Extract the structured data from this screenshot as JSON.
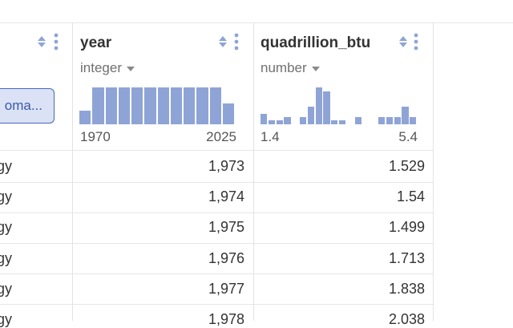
{
  "left_column": {
    "button_label": "oma...",
    "row_suffix": "gy"
  },
  "columns": [
    {
      "name": "year",
      "type": "integer",
      "hist_min": "1970",
      "hist_max": "2025",
      "histogram": [
        0.35,
        0.95,
        0.95,
        0.95,
        0.95,
        0.95,
        0.95,
        0.95,
        0.95,
        0.95,
        0.95,
        0.55
      ]
    },
    {
      "name": "quadrillion_btu",
      "type": "number",
      "hist_min": "1.4",
      "hist_max": "5.4",
      "histogram": [
        0.28,
        0.1,
        0.1,
        0.18,
        0,
        0.18,
        0.45,
        0.95,
        0.85,
        0.1,
        0.1,
        0,
        0.18,
        0,
        0,
        0.18,
        0.18,
        0.18,
        0.45,
        0.18
      ]
    }
  ],
  "rows": [
    {
      "year": "1,973",
      "quadrillion_btu": "1.529"
    },
    {
      "year": "1,974",
      "quadrillion_btu": "1.54"
    },
    {
      "year": "1,975",
      "quadrillion_btu": "1.499"
    },
    {
      "year": "1,976",
      "quadrillion_btu": "1.713"
    },
    {
      "year": "1,977",
      "quadrillion_btu": "1.838"
    },
    {
      "year": "1,978",
      "quadrillion_btu": "2.038"
    }
  ],
  "colors": {
    "accent": "#4a67b5",
    "histogram_bar": "#8fa4d6"
  }
}
